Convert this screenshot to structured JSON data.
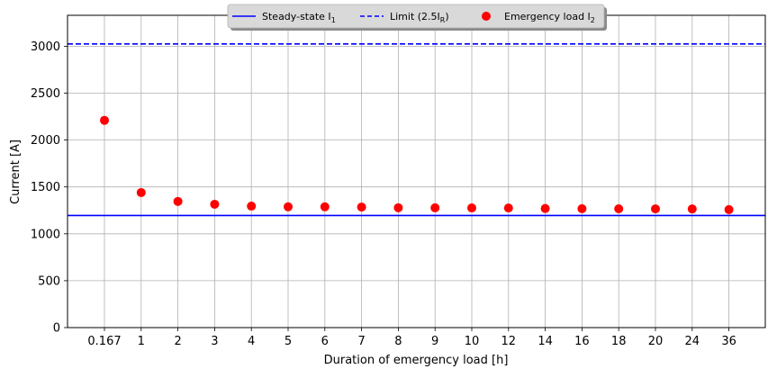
{
  "chart_data": {
    "type": "scatter",
    "xlabel": "Duration of emergency load [h]",
    "ylabel": "Current [A]",
    "categories": [
      "0.167",
      "1",
      "2",
      "3",
      "4",
      "5",
      "6",
      "7",
      "8",
      "9",
      "10",
      "12",
      "14",
      "16",
      "18",
      "20",
      "24",
      "36"
    ],
    "ylim": [
      0,
      3330
    ],
    "yticks": [
      0,
      500,
      1000,
      1500,
      2000,
      2500,
      3000
    ],
    "grid": true,
    "legend_position": "top-center",
    "series": [
      {
        "name": "Steady-state I",
        "name_sub": "1",
        "kind": "hline",
        "style": "solid",
        "color": "#0000ff",
        "value": 1195
      },
      {
        "name": "Limit (2.5I",
        "name_sub": "R",
        "name_suffix": ")",
        "kind": "hline",
        "style": "dashed",
        "color": "#0000ff",
        "value": 3025
      },
      {
        "name": "Emergency load I",
        "name_sub": "2",
        "kind": "points",
        "color": "#ff0000",
        "values": [
          2210,
          1440,
          1345,
          1315,
          1295,
          1288,
          1288,
          1285,
          1278,
          1277,
          1276,
          1275,
          1270,
          1268,
          1267,
          1266,
          1265,
          1258
        ]
      }
    ]
  }
}
